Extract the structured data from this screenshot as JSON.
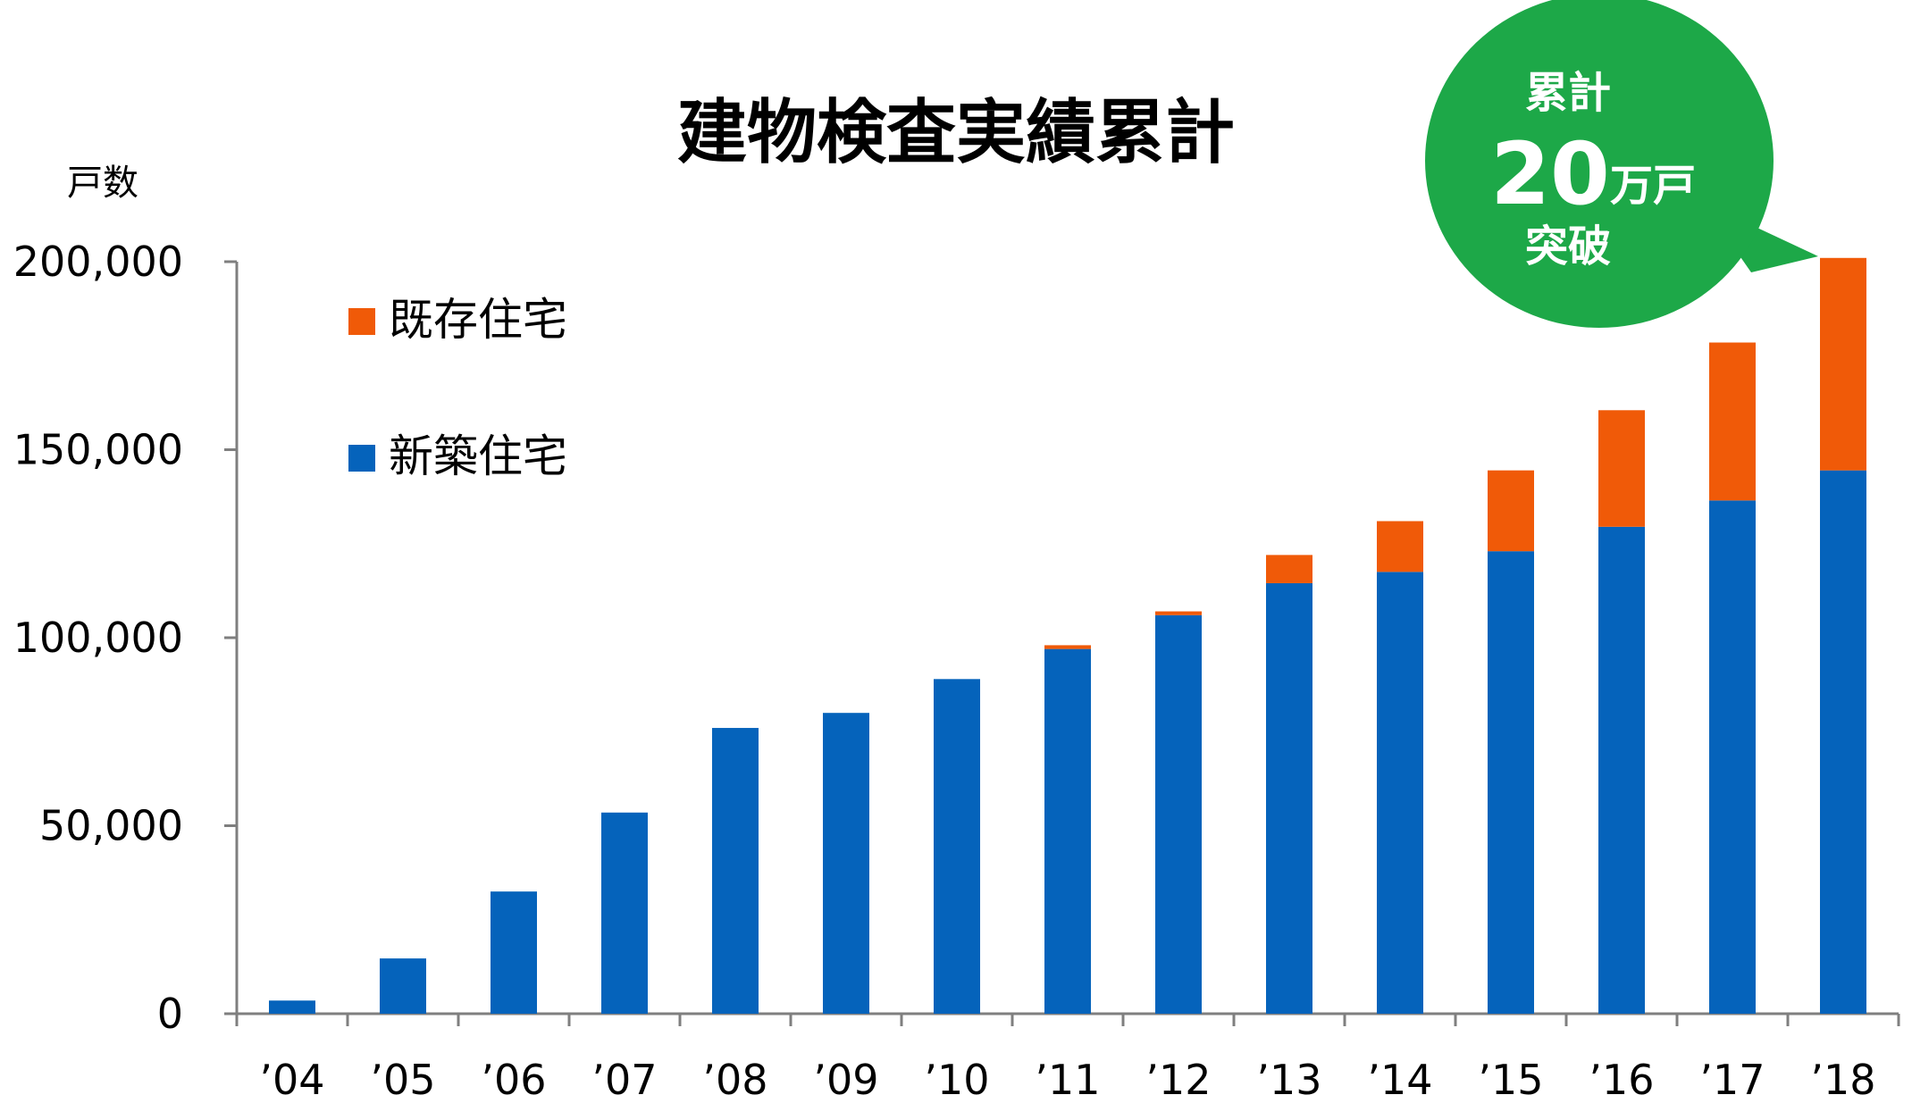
{
  "chart_data": {
    "type": "bar",
    "stacked": true,
    "title": "建物検査実績累計",
    "ylabel": "戸数",
    "xlabel": "",
    "categories": [
      "’04",
      "’05",
      "’06",
      "’07",
      "’08",
      "’09",
      "’10",
      "’11",
      "’12",
      "’13",
      "’14",
      "’15",
      "’16",
      "’17",
      "’18"
    ],
    "series": [
      {
        "name": "新築住宅",
        "color": "#0563BB",
        "values": [
          3500,
          14700,
          32500,
          53500,
          76000,
          80000,
          89000,
          97000,
          106000,
          114500,
          117500,
          123000,
          129500,
          136500,
          144500
        ]
      },
      {
        "name": "既存住宅",
        "color": "#F05A08",
        "values": [
          0,
          0,
          0,
          0,
          0,
          0,
          0,
          1000,
          1000,
          7500,
          13500,
          21500,
          31000,
          42000,
          56500
        ]
      }
    ],
    "ylim": [
      0,
      200000
    ],
    "yticks": [
      0,
      50000,
      100000,
      150000,
      200000
    ],
    "ytick_labels": [
      "0",
      "50,000",
      "100,000",
      "150,000",
      "200,000"
    ],
    "grid": false,
    "legend": {
      "placement": "top-left",
      "order": [
        "既存住宅",
        "新築住宅"
      ]
    },
    "callout": {
      "color": "#1DA848",
      "line1": "累計",
      "number": "20",
      "unit": "万戸",
      "line3": "突破"
    }
  }
}
